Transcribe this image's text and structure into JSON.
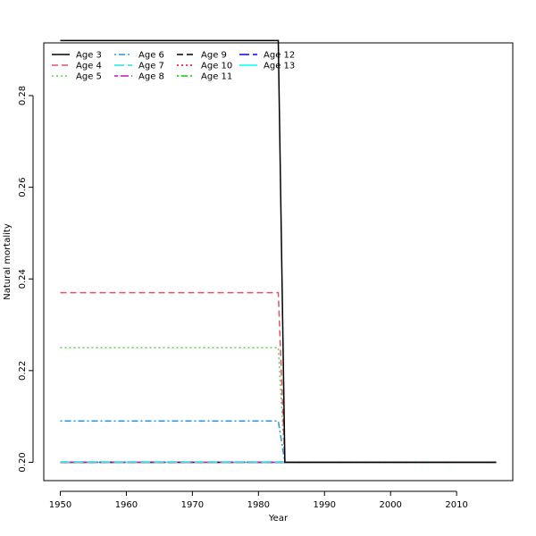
{
  "chart_data": {
    "type": "line",
    "title": "",
    "xlabel": "Year",
    "ylabel": "Natural mortality",
    "xlim": [
      1947.5,
      2018.5
    ],
    "ylim": [
      0.196,
      0.2915
    ],
    "xticks": [
      1950,
      1960,
      1970,
      1980,
      1990,
      2000,
      2010
    ],
    "yticks": [
      0.2,
      0.22,
      0.24,
      0.26,
      0.28
    ],
    "ytick_labels": [
      "0.20",
      "0.22",
      "0.24",
      "0.26",
      "0.28"
    ],
    "grid": false,
    "legend": {
      "placement": "top-left",
      "columns": 4,
      "frame": false
    },
    "x": [
      1950,
      1983,
      1984,
      2016
    ],
    "series": [
      {
        "name": "Age 3",
        "color": "#000000",
        "dash": "solid",
        "values": [
          0.292,
          0.292,
          0.2,
          0.2
        ]
      },
      {
        "name": "Age 4",
        "color": "#DF536B",
        "dash": "dashed",
        "values": [
          0.237,
          0.237,
          0.2,
          0.2
        ]
      },
      {
        "name": "Age 5",
        "color": "#61D04F",
        "dash": "dotted",
        "values": [
          0.225,
          0.225,
          0.2,
          0.2
        ]
      },
      {
        "name": "Age 6",
        "color": "#2297E6",
        "dash": "dotdash",
        "values": [
          0.209,
          0.209,
          0.2,
          0.2
        ]
      },
      {
        "name": "Age 7",
        "color": "#28E2E5",
        "dash": "longdash",
        "values": [
          0.2,
          0.2,
          0.2,
          0.2
        ]
      },
      {
        "name": "Age 8",
        "color": "#CD0BBC",
        "dash": "twodash",
        "values": [
          0.2,
          0.2,
          0.2,
          0.2
        ]
      },
      {
        "name": "Age 9",
        "color": "#000000",
        "dash": "dashed",
        "values": [
          0.2,
          0.2,
          0.2,
          0.2
        ]
      },
      {
        "name": "Age 10",
        "color": "#FF0000",
        "dash": "dotted",
        "values": [
          0.2,
          0.2,
          0.2,
          0.2
        ]
      },
      {
        "name": "Age 11",
        "color": "#00CD00",
        "dash": "dotdash",
        "values": [
          0.2,
          0.2,
          0.2,
          0.2
        ]
      },
      {
        "name": "Age 12",
        "color": "#0000FF",
        "dash": "longdash",
        "values": [
          0.2,
          0.2,
          0.2,
          0.2
        ]
      },
      {
        "name": "Age 13",
        "color": "#00FFFF",
        "dash": "solid",
        "values": [
          0.2,
          0.2,
          0.2,
          0.2
        ]
      }
    ]
  }
}
